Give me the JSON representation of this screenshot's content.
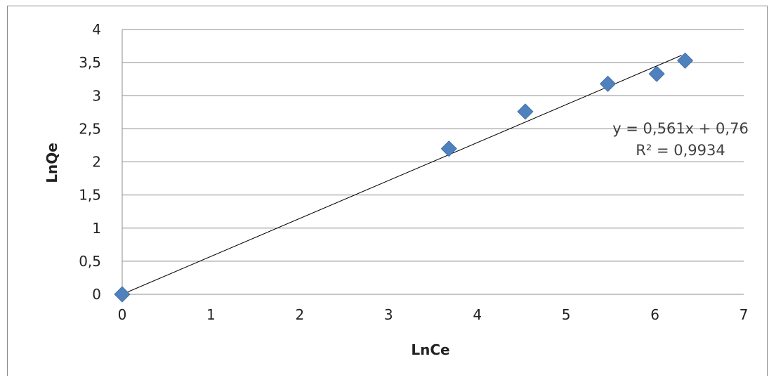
{
  "chart_data": {
    "type": "scatter",
    "title": "",
    "xlabel": "LnCe",
    "ylabel": "LnQe",
    "xlim": [
      0,
      7
    ],
    "ylim": [
      0,
      4
    ],
    "x_ticks": [
      "0",
      "1",
      "2",
      "3",
      "4",
      "5",
      "6",
      "7"
    ],
    "y_ticks": [
      "0",
      "0,5",
      "1",
      "1,5",
      "2",
      "2,5",
      "3",
      "3,5",
      "4"
    ],
    "grid": "horizontal",
    "series": [
      {
        "x": [
          0,
          3.68,
          4.54,
          5.47,
          6.02,
          6.34
        ],
        "y": [
          0,
          2.2,
          2.76,
          3.18,
          3.33,
          3.53
        ],
        "color": "#4f81bd",
        "marker": "diamond"
      }
    ],
    "trendline": {
      "slope": 0.561,
      "intercept": 0.76,
      "x_range": [
        0,
        6.3
      ],
      "color": "#000000",
      "equation_label": "y = 0,561x + 0,76",
      "r2_label": "R² = 0,9934"
    }
  }
}
